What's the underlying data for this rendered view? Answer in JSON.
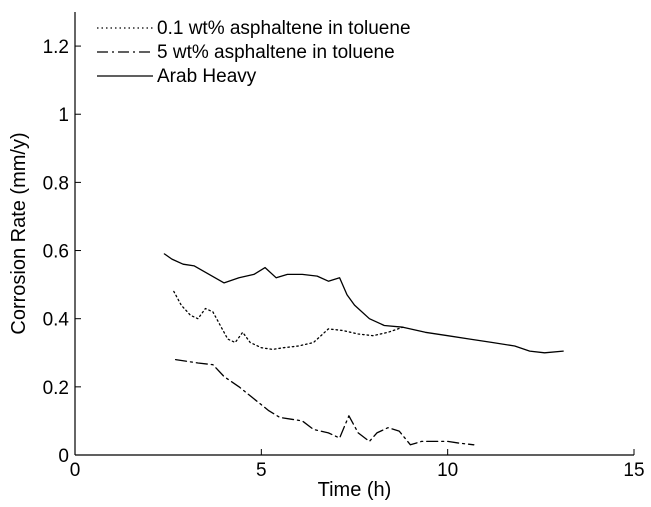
{
  "chart_data": {
    "type": "line",
    "title": "",
    "xlabel": "Time (h)",
    "ylabel": "Corrosion Rate (mm/y)",
    "xlim": [
      0,
      15
    ],
    "ylim": [
      0,
      1.3
    ],
    "xticks": [
      0,
      5,
      10,
      15
    ],
    "yticks": [
      0,
      0.2,
      0.4,
      0.6,
      0.8,
      1,
      1.2
    ],
    "xtick_labels": [
      "0",
      "5",
      "10",
      "15"
    ],
    "ytick_labels": [
      "0",
      "0.2",
      "0.4",
      "0.6",
      "0.8",
      "1",
      "1.2"
    ],
    "grid": false,
    "legend": "top-left",
    "series": [
      {
        "name": "0.1 wt% asphaltene in toluene",
        "style": "dotted",
        "color": "#000000",
        "x": [
          2.65,
          2.85,
          3.1,
          3.3,
          3.5,
          3.7,
          3.9,
          4.1,
          4.3,
          4.5,
          4.7,
          5.0,
          5.3,
          5.6,
          6.0,
          6.4,
          6.8,
          7.2,
          7.6,
          8.0,
          8.4,
          8.8
        ],
        "y": [
          0.48,
          0.44,
          0.41,
          0.4,
          0.43,
          0.42,
          0.38,
          0.34,
          0.33,
          0.36,
          0.33,
          0.315,
          0.31,
          0.315,
          0.32,
          0.33,
          0.37,
          0.365,
          0.355,
          0.35,
          0.36,
          0.375
        ]
      },
      {
        "name": "5 wt% asphaltene in toluene",
        "style": "dashdot",
        "color": "#000000",
        "x": [
          2.7,
          3.0,
          3.3,
          3.7,
          4.0,
          4.4,
          4.8,
          5.2,
          5.5,
          5.8,
          6.1,
          6.4,
          6.8,
          7.1,
          7.35,
          7.6,
          7.9,
          8.1,
          8.4,
          8.7,
          9.0,
          9.3,
          9.6,
          10.0,
          10.3,
          10.7
        ],
        "y": [
          0.28,
          0.275,
          0.27,
          0.265,
          0.23,
          0.2,
          0.165,
          0.13,
          0.11,
          0.105,
          0.1,
          0.075,
          0.065,
          0.05,
          0.115,
          0.065,
          0.04,
          0.065,
          0.08,
          0.07,
          0.03,
          0.04,
          0.04,
          0.04,
          0.035,
          0.03
        ]
      },
      {
        "name": "Arab Heavy",
        "style": "solid",
        "color": "#000000",
        "x": [
          2.4,
          2.6,
          2.9,
          3.2,
          3.6,
          4.0,
          4.4,
          4.8,
          5.1,
          5.4,
          5.7,
          6.1,
          6.5,
          6.8,
          7.1,
          7.3,
          7.5,
          7.9,
          8.3,
          8.8,
          9.4,
          10.0,
          10.6,
          11.2,
          11.8,
          12.2,
          12.6,
          13.1
        ],
        "y": [
          0.59,
          0.575,
          0.56,
          0.555,
          0.53,
          0.505,
          0.52,
          0.53,
          0.55,
          0.52,
          0.53,
          0.53,
          0.525,
          0.51,
          0.52,
          0.47,
          0.44,
          0.4,
          0.38,
          0.375,
          0.36,
          0.35,
          0.34,
          0.33,
          0.32,
          0.305,
          0.3,
          0.305
        ]
      }
    ]
  }
}
